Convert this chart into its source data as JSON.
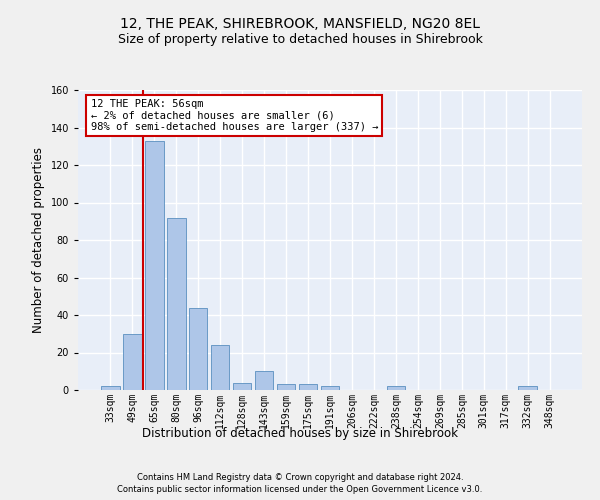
{
  "title": "12, THE PEAK, SHIREBROOK, MANSFIELD, NG20 8EL",
  "subtitle": "Size of property relative to detached houses in Shirebrook",
  "xlabel": "Distribution of detached houses by size in Shirebrook",
  "ylabel": "Number of detached properties",
  "categories": [
    "33sqm",
    "49sqm",
    "65sqm",
    "80sqm",
    "96sqm",
    "112sqm",
    "128sqm",
    "143sqm",
    "159sqm",
    "175sqm",
    "191sqm",
    "206sqm",
    "222sqm",
    "238sqm",
    "254sqm",
    "269sqm",
    "285sqm",
    "301sqm",
    "317sqm",
    "332sqm",
    "348sqm"
  ],
  "values": [
    2,
    30,
    133,
    92,
    44,
    24,
    4,
    10,
    3,
    3,
    2,
    0,
    0,
    2,
    0,
    0,
    0,
    0,
    0,
    2,
    0
  ],
  "bar_color": "#aec6e8",
  "bar_edge_color": "#5a8fc0",
  "vline_color": "#cc0000",
  "vline_x_index": 1.5,
  "annotation_text": "12 THE PEAK: 56sqm\n← 2% of detached houses are smaller (6)\n98% of semi-detached houses are larger (337) →",
  "annotation_box_color": "#ffffff",
  "annotation_box_edge": "#cc0000",
  "ylim": [
    0,
    160
  ],
  "yticks": [
    0,
    20,
    40,
    60,
    80,
    100,
    120,
    140,
    160
  ],
  "background_color": "#e8eef8",
  "grid_color": "#ffffff",
  "footer1": "Contains HM Land Registry data © Crown copyright and database right 2024.",
  "footer2": "Contains public sector information licensed under the Open Government Licence v3.0.",
  "title_fontsize": 10,
  "subtitle_fontsize": 9,
  "tick_fontsize": 7,
  "ylabel_fontsize": 8.5,
  "xlabel_fontsize": 8.5,
  "annotation_fontsize": 7.5,
  "footer_fontsize": 6
}
